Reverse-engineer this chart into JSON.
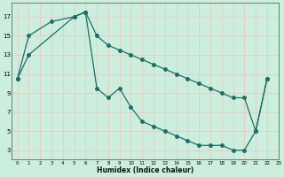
{
  "xlabel": "Humidex (Indice chaleur)",
  "bg_color": "#cceedd",
  "grid_color": "#e8c8c8",
  "line_color": "#1a7068",
  "xlim": [
    -0.5,
    23
  ],
  "ylim": [
    2,
    18.5
  ],
  "xticks": [
    0,
    1,
    2,
    3,
    4,
    5,
    6,
    7,
    8,
    9,
    10,
    11,
    12,
    13,
    14,
    15,
    16,
    17,
    18,
    19,
    20,
    21,
    22,
    23
  ],
  "yticks": [
    3,
    5,
    7,
    9,
    11,
    13,
    15,
    17
  ],
  "curve1_x": [
    0,
    1,
    3,
    5,
    6,
    7,
    8,
    9,
    10,
    11,
    12,
    13,
    14,
    15,
    16,
    17,
    18,
    19,
    20,
    21,
    22
  ],
  "curve1_y": [
    10.5,
    15,
    16.5,
    17,
    17.5,
    15,
    14,
    13.5,
    13,
    12.5,
    12,
    11.5,
    11,
    10.5,
    10,
    9.5,
    9,
    8.5,
    8.5,
    5,
    10.5
  ],
  "curve2_x": [
    0,
    1,
    5,
    6,
    7,
    8,
    9,
    10,
    11,
    12,
    13,
    14,
    15,
    16,
    17,
    18,
    19,
    20,
    21,
    22
  ],
  "curve2_y": [
    10.5,
    13,
    17,
    17.5,
    9.5,
    8.5,
    9.5,
    7.5,
    6,
    5.5,
    5,
    4.5,
    4,
    3.5,
    3.5,
    3.5,
    3,
    3,
    5,
    10.5
  ]
}
